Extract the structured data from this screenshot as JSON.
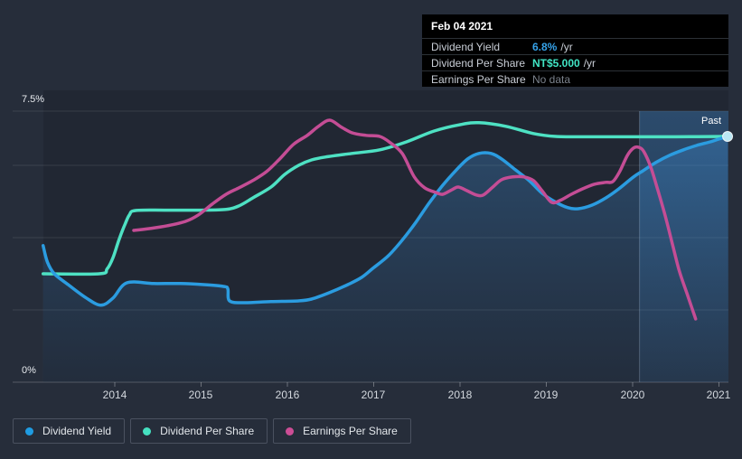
{
  "page": {
    "background": "#262d3a",
    "accent_blue": "#2b9ce0",
    "accent_teal": "#4ee1c3",
    "accent_pink": "#c44d95"
  },
  "tooltip": {
    "date": "Feb 04 2021",
    "rows": [
      {
        "label": "Dividend Yield",
        "value": "6.8%",
        "suffix": "/yr",
        "value_color": "#36a2e9",
        "no_data": false
      },
      {
        "label": "Dividend Per Share",
        "value": "NT$5.000",
        "suffix": "/yr",
        "value_color": "#41e4c4",
        "no_data": false
      },
      {
        "label": "Earnings Per Share",
        "value": "No data",
        "suffix": "",
        "value_color": "#7b828c",
        "no_data": true
      }
    ]
  },
  "legend": [
    {
      "label": "Dividend Yield",
      "color": "#1f9ce2"
    },
    {
      "label": "Dividend Per Share",
      "color": "#45e0c0"
    },
    {
      "label": "Earnings Per Share",
      "color": "#cc4d95"
    }
  ],
  "chart_data": {
    "type": "line",
    "title": "Dividend history",
    "x_axis": {
      "ticks": [
        2014,
        2015,
        2016,
        2017,
        2018,
        2019,
        2020,
        2021
      ],
      "labels": [
        "2014",
        "2015",
        "2016",
        "2017",
        "2018",
        "2019",
        "2020",
        "2021"
      ]
    },
    "y_axis": {
      "unit": "%",
      "range": [
        0,
        7.5
      ],
      "gridlines": [
        7.5,
        6,
        4,
        2,
        0
      ],
      "labels": [
        {
          "value": 7.5,
          "text": "7.5%"
        },
        {
          "value": 0,
          "text": "0%"
        }
      ]
    },
    "past_marker": {
      "label": "Past",
      "start_x": 2020.08
    },
    "grid": "horizontal-only",
    "legend_position": "bottom-left",
    "series": [
      {
        "name": "Dividend Yield",
        "color": "#2b9ce0",
        "area": true,
        "end_dot": true,
        "points": [
          [
            2013.17,
            3.78
          ],
          [
            2013.22,
            3.32
          ],
          [
            2013.3,
            3.0
          ],
          [
            2013.46,
            2.7
          ],
          [
            2013.67,
            2.33
          ],
          [
            2013.84,
            2.13
          ],
          [
            2013.98,
            2.33
          ],
          [
            2014.14,
            2.75
          ],
          [
            2014.45,
            2.73
          ],
          [
            2014.76,
            2.73
          ],
          [
            2015.03,
            2.7
          ],
          [
            2015.26,
            2.65
          ],
          [
            2015.31,
            2.58
          ],
          [
            2015.33,
            2.25
          ],
          [
            2015.5,
            2.2
          ],
          [
            2015.81,
            2.23
          ],
          [
            2016.13,
            2.25
          ],
          [
            2016.28,
            2.3
          ],
          [
            2016.49,
            2.48
          ],
          [
            2016.7,
            2.7
          ],
          [
            2016.86,
            2.9
          ],
          [
            2016.99,
            3.15
          ],
          [
            2017.17,
            3.5
          ],
          [
            2017.33,
            3.93
          ],
          [
            2017.49,
            4.43
          ],
          [
            2017.64,
            4.95
          ],
          [
            2017.8,
            5.45
          ],
          [
            2017.96,
            5.88
          ],
          [
            2018.09,
            6.18
          ],
          [
            2018.22,
            6.33
          ],
          [
            2018.36,
            6.33
          ],
          [
            2018.48,
            6.18
          ],
          [
            2018.64,
            5.88
          ],
          [
            2018.8,
            5.58
          ],
          [
            2018.95,
            5.23
          ],
          [
            2019.11,
            4.98
          ],
          [
            2019.25,
            4.83
          ],
          [
            2019.37,
            4.8
          ],
          [
            2019.53,
            4.9
          ],
          [
            2019.69,
            5.1
          ],
          [
            2019.84,
            5.35
          ],
          [
            2020.01,
            5.68
          ],
          [
            2020.12,
            5.85
          ],
          [
            2020.27,
            6.08
          ],
          [
            2020.43,
            6.28
          ],
          [
            2020.59,
            6.43
          ],
          [
            2020.74,
            6.55
          ],
          [
            2020.9,
            6.65
          ],
          [
            2021.0,
            6.73
          ],
          [
            2021.1,
            6.8
          ]
        ]
      },
      {
        "name": "Dividend Per Share",
        "color": "#4ee1c3",
        "area": false,
        "end_dot": false,
        "points": [
          [
            2013.17,
            3.0
          ],
          [
            2013.82,
            3.0
          ],
          [
            2013.91,
            3.13
          ],
          [
            2013.98,
            3.45
          ],
          [
            2014.05,
            3.95
          ],
          [
            2014.12,
            4.38
          ],
          [
            2014.17,
            4.63
          ],
          [
            2014.24,
            4.75
          ],
          [
            2014.6,
            4.76
          ],
          [
            2015.0,
            4.76
          ],
          [
            2015.29,
            4.78
          ],
          [
            2015.44,
            4.88
          ],
          [
            2015.6,
            5.1
          ],
          [
            2015.81,
            5.4
          ],
          [
            2015.97,
            5.75
          ],
          [
            2016.13,
            6.0
          ],
          [
            2016.28,
            6.15
          ],
          [
            2016.44,
            6.23
          ],
          [
            2016.75,
            6.33
          ],
          [
            2017.07,
            6.43
          ],
          [
            2017.38,
            6.65
          ],
          [
            2017.7,
            6.95
          ],
          [
            2018.01,
            7.13
          ],
          [
            2018.22,
            7.18
          ],
          [
            2018.53,
            7.08
          ],
          [
            2018.85,
            6.88
          ],
          [
            2019.11,
            6.8
          ],
          [
            2019.5,
            6.79
          ],
          [
            2020.0,
            6.79
          ],
          [
            2020.5,
            6.79
          ],
          [
            2021.1,
            6.8
          ]
        ]
      },
      {
        "name": "Earnings Per Share",
        "color": "#c44d95",
        "area": false,
        "end_dot": false,
        "points": [
          [
            2014.22,
            4.2
          ],
          [
            2014.4,
            4.25
          ],
          [
            2014.61,
            4.33
          ],
          [
            2014.82,
            4.45
          ],
          [
            2014.97,
            4.63
          ],
          [
            2015.13,
            4.93
          ],
          [
            2015.29,
            5.2
          ],
          [
            2015.44,
            5.38
          ],
          [
            2015.6,
            5.58
          ],
          [
            2015.76,
            5.83
          ],
          [
            2015.92,
            6.2
          ],
          [
            2016.07,
            6.58
          ],
          [
            2016.23,
            6.83
          ],
          [
            2016.36,
            7.08
          ],
          [
            2016.49,
            7.25
          ],
          [
            2016.63,
            7.05
          ],
          [
            2016.75,
            6.9
          ],
          [
            2016.91,
            6.83
          ],
          [
            2017.07,
            6.8
          ],
          [
            2017.19,
            6.63
          ],
          [
            2017.33,
            6.33
          ],
          [
            2017.47,
            5.68
          ],
          [
            2017.59,
            5.38
          ],
          [
            2017.72,
            5.25
          ],
          [
            2017.8,
            5.2
          ],
          [
            2017.91,
            5.33
          ],
          [
            2017.98,
            5.4
          ],
          [
            2018.08,
            5.3
          ],
          [
            2018.19,
            5.18
          ],
          [
            2018.27,
            5.18
          ],
          [
            2018.38,
            5.4
          ],
          [
            2018.48,
            5.6
          ],
          [
            2018.61,
            5.68
          ],
          [
            2018.74,
            5.68
          ],
          [
            2018.85,
            5.58
          ],
          [
            2018.95,
            5.3
          ],
          [
            2019.06,
            4.98
          ],
          [
            2019.16,
            5.03
          ],
          [
            2019.29,
            5.2
          ],
          [
            2019.42,
            5.35
          ],
          [
            2019.56,
            5.48
          ],
          [
            2019.69,
            5.53
          ],
          [
            2019.77,
            5.55
          ],
          [
            2019.85,
            5.83
          ],
          [
            2019.94,
            6.28
          ],
          [
            2020.01,
            6.48
          ],
          [
            2020.07,
            6.5
          ],
          [
            2020.13,
            6.38
          ],
          [
            2020.21,
            5.95
          ],
          [
            2020.29,
            5.33
          ],
          [
            2020.38,
            4.58
          ],
          [
            2020.46,
            3.83
          ],
          [
            2020.54,
            3.08
          ],
          [
            2020.63,
            2.45
          ],
          [
            2020.69,
            2.03
          ],
          [
            2020.73,
            1.75
          ]
        ]
      }
    ]
  }
}
